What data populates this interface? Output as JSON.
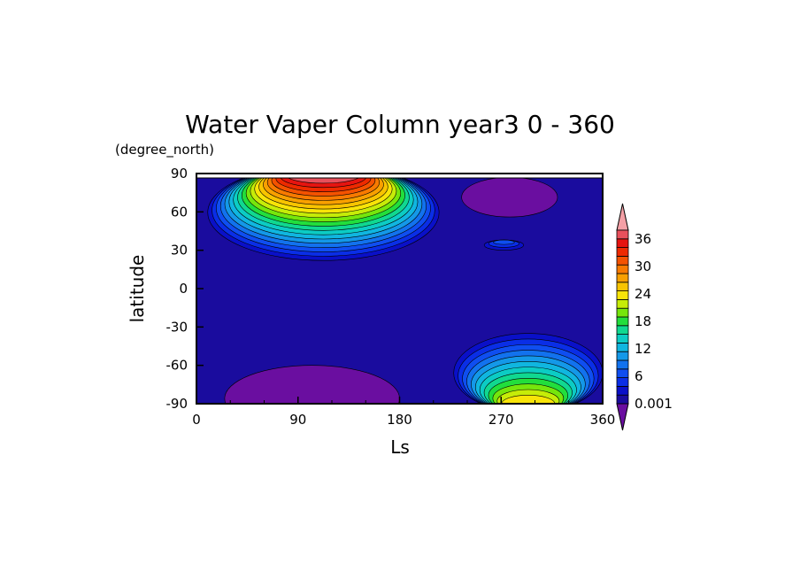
{
  "chart_data": {
    "type": "heatmap",
    "title": "Water Vaper Column year3 0 - 360",
    "units_label": "(degree_north)",
    "xlabel": "Ls",
    "ylabel": "latitude",
    "xlim": [
      0,
      360
    ],
    "ylim": [
      -90,
      90
    ],
    "x_ticks": [
      "0",
      "90",
      "180",
      "270",
      "360"
    ],
    "x_tick_values": [
      0,
      90,
      180,
      270,
      360
    ],
    "y_ticks": [
      "90",
      "60",
      "30",
      "0",
      "-30",
      "-60",
      "-90"
    ],
    "y_tick_values": [
      90,
      60,
      30,
      0,
      -30,
      -60,
      -90
    ],
    "colorbar": {
      "labels": [
        "36",
        "30",
        "24",
        "18",
        "12",
        "6",
        "0.001"
      ],
      "label_values": [
        36,
        30,
        24,
        18,
        12,
        6,
        0.001
      ],
      "colors": [
        "#6a0ea0",
        "#1a0c9e",
        "#0a10c8",
        "#0a2ee6",
        "#0f4ef0",
        "#1272ee",
        "#1498e8",
        "#10b6e0",
        "#0cccc4",
        "#10d890",
        "#22de3c",
        "#76e60c",
        "#c6ec08",
        "#f8e408",
        "#f8c400",
        "#f8a000",
        "#f87a00",
        "#f45200",
        "#ee2a00",
        "#e61410",
        "#e8505c",
        "#f4a0a6"
      ],
      "extend": "both"
    },
    "background_level_color": "#1a0c9e",
    "features": [
      {
        "name": "northern-summer-maximum",
        "ls_range": [
          10,
          215
        ],
        "lat_range": [
          12,
          87
        ],
        "peak_value": 38
      },
      {
        "name": "southern-summer-maximum",
        "ls_range": [
          228,
          360
        ],
        "lat_range": [
          -87,
          -25
        ],
        "peak_value": 24
      },
      {
        "name": "low-latitude-patch",
        "ls_range": [
          255,
          290
        ],
        "lat_range": [
          20,
          28
        ],
        "peak_value": 6
      },
      {
        "name": "southern-winter-minimum",
        "ls_range": [
          25,
          180
        ],
        "lat_range": [
          -87,
          -60
        ],
        "peak_value": 0.001
      },
      {
        "name": "northern-winter-minimum",
        "ls_range": [
          235,
          320
        ],
        "lat_range": [
          81,
          87
        ],
        "peak_value": 0.001
      }
    ]
  }
}
